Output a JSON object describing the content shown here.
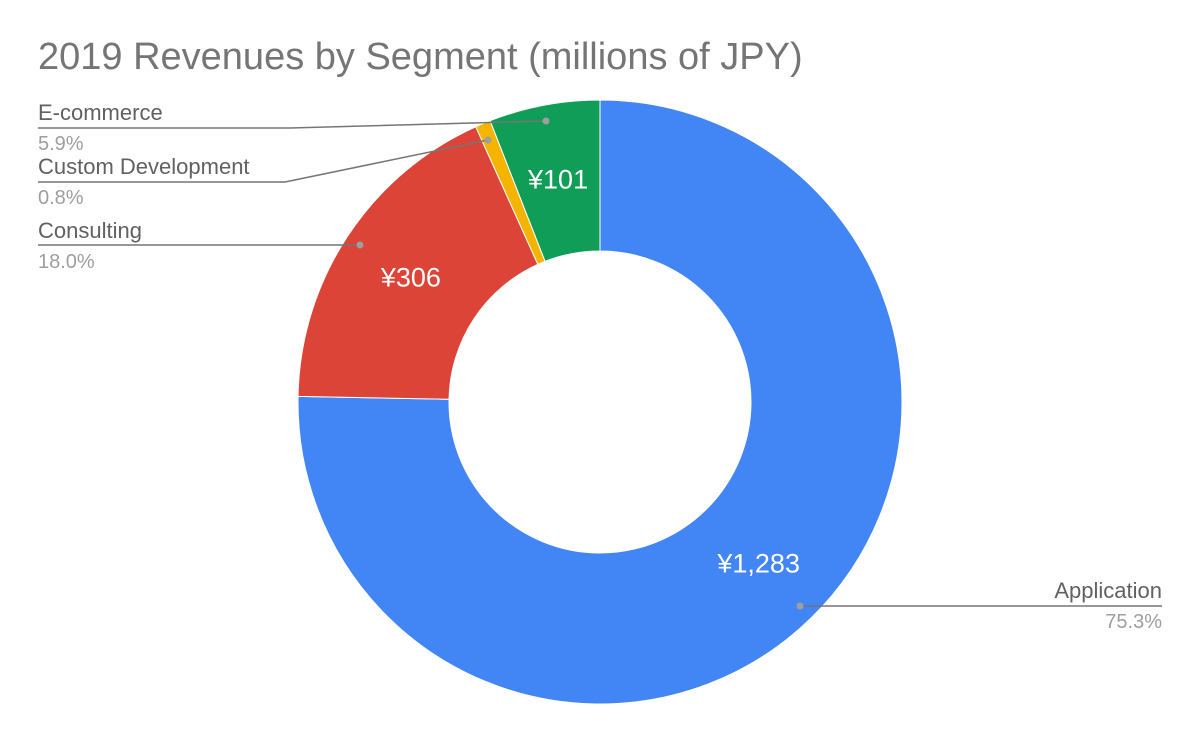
{
  "chart_data": {
    "type": "pie",
    "style": "donut",
    "title": "2019 Revenues by Segment (millions of JPY)",
    "slices": [
      {
        "name": "Application",
        "value": 1283,
        "value_label": "¥1,283",
        "percent_label": "75.3%",
        "color": "#4285f4"
      },
      {
        "name": "Consulting",
        "value": 306,
        "value_label": "¥306",
        "percent_label": "18.0%",
        "color": "#db4437"
      },
      {
        "name": "Custom Development",
        "value": 14,
        "value_label": "",
        "percent_label": "0.8%",
        "color": "#f4b400"
      },
      {
        "name": "E-commerce",
        "value": 101,
        "value_label": "¥101",
        "percent_label": "5.9%",
        "color": "#0f9d58"
      }
    ],
    "legend": "labels-with-leader-lines"
  }
}
